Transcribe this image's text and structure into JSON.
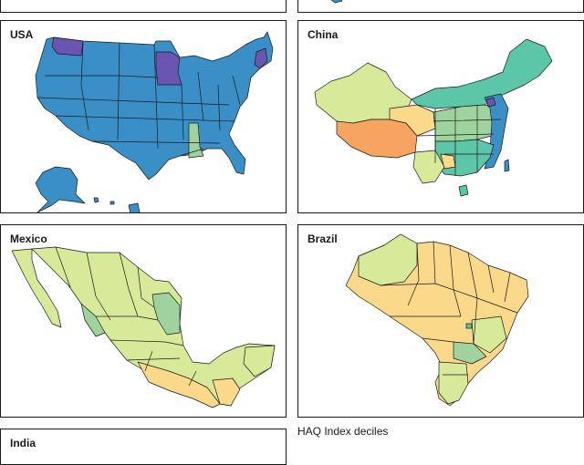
{
  "figure": {
    "panels": [
      {
        "id": "usa",
        "title": "USA"
      },
      {
        "id": "china",
        "title": "China"
      },
      {
        "id": "mexico",
        "title": "Mexico"
      },
      {
        "id": "brazil",
        "title": "Brazil"
      },
      {
        "id": "india",
        "title": "India"
      }
    ],
    "legend_title": "HAQ Index deciles"
  },
  "colors": {
    "decile_blue": "#3a8fc7",
    "decile_purple": "#6a55b0",
    "decile_teal": "#5cc7a8",
    "decile_green": "#9ed39e",
    "decile_lightgreen": "#d7ea9a",
    "decile_yellow": "#fbd98a",
    "decile_orange": "#f7a460",
    "border": "#1a1a1a"
  }
}
